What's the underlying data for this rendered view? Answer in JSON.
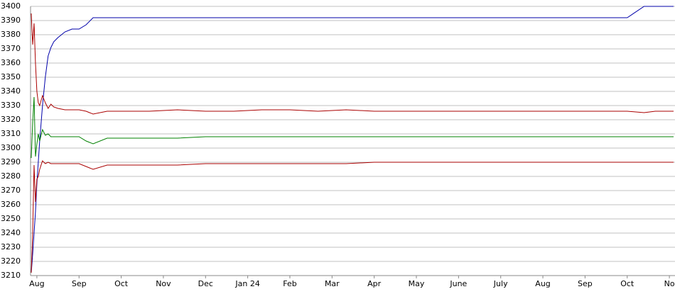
{
  "chart_data": {
    "type": "line",
    "x": [
      -4,
      -3,
      -2,
      -1,
      0,
      1,
      2,
      4,
      6,
      8,
      10,
      12,
      15,
      20,
      25,
      30,
      35,
      40,
      50,
      60,
      80,
      100,
      120,
      140,
      160,
      180,
      200,
      220,
      240,
      260,
      280,
      300,
      320,
      340,
      360,
      380,
      400,
      420,
      432,
      440,
      453
    ],
    "series": [
      {
        "color": "#0000aa",
        "values": [
          3212,
          3225,
          3240,
          3255,
          3275,
          3290,
          3305,
          3330,
          3350,
          3365,
          3371,
          3375,
          3378,
          3382,
          3384,
          3384,
          3387,
          3392,
          3392,
          3392,
          3392,
          3392,
          3392,
          3392,
          3392,
          3392,
          3392,
          3392,
          3392,
          3392,
          3392,
          3392,
          3392,
          3392,
          3392,
          3392,
          3392,
          3392,
          3400,
          3400,
          3400
        ]
      },
      {
        "color": "#aa0000",
        "values": [
          3395,
          3373,
          3388,
          3360,
          3340,
          3332,
          3330,
          3337,
          3332,
          3328,
          3331,
          3329,
          3328,
          3327,
          3327,
          3327,
          3326,
          3324,
          3326,
          3326,
          3326,
          3327,
          3326,
          3326,
          3327,
          3327,
          3326,
          3327,
          3326,
          3326,
          3326,
          3326,
          3326,
          3326,
          3326,
          3326,
          3326,
          3326,
          3325,
          3326,
          3326
        ]
      },
      {
        "color": "#008000",
        "values": [
          3293,
          3318,
          3336,
          3294,
          3303,
          3310,
          3305,
          3313,
          3309,
          3310,
          3308,
          3308,
          3308,
          3308,
          3308,
          3308,
          3305,
          3303,
          3307,
          3307,
          3307,
          3307,
          3308,
          3308,
          3308,
          3308,
          3308,
          3308,
          3308,
          3308,
          3308,
          3308,
          3308,
          3308,
          3308,
          3308,
          3308,
          3308,
          3308,
          3308,
          3308
        ]
      },
      {
        "color": "#aa0000",
        "values": [
          3212,
          3240,
          3288,
          3262,
          3278,
          3280,
          3285,
          3291,
          3289,
          3290,
          3289,
          3289,
          3289,
          3289,
          3289,
          3289,
          3287,
          3285,
          3288,
          3288,
          3288,
          3288,
          3289,
          3289,
          3289,
          3289,
          3289,
          3289,
          3290,
          3290,
          3290,
          3290,
          3290,
          3290,
          3290,
          3290,
          3290,
          3290,
          3290,
          3290,
          3290
        ]
      }
    ],
    "xlim": [
      -4.5,
      454
    ],
    "xticks": [
      {
        "value": 0,
        "label": "Aug"
      },
      {
        "value": 30,
        "label": "Sep"
      },
      {
        "value": 60,
        "label": "Oct"
      },
      {
        "value": 90,
        "label": "Nov"
      },
      {
        "value": 120,
        "label": "Dec"
      },
      {
        "value": 150,
        "label": "Jan 24"
      },
      {
        "value": 180,
        "label": "Feb"
      },
      {
        "value": 210,
        "label": "Mar"
      },
      {
        "value": 240,
        "label": "Apr"
      },
      {
        "value": 270,
        "label": "May"
      },
      {
        "value": 300,
        "label": "June"
      },
      {
        "value": 330,
        "label": "July"
      },
      {
        "value": 360,
        "label": "Aug"
      },
      {
        "value": 390,
        "label": "Sep"
      },
      {
        "value": 420,
        "label": "Oct"
      },
      {
        "value": 450,
        "label": "No"
      }
    ],
    "ylim": [
      3210,
      3400
    ],
    "yticks": [
      3210,
      3220,
      3230,
      3240,
      3250,
      3260,
      3270,
      3280,
      3290,
      3300,
      3310,
      3320,
      3330,
      3340,
      3350,
      3360,
      3370,
      3380,
      3390,
      3400
    ],
    "grid": true
  }
}
